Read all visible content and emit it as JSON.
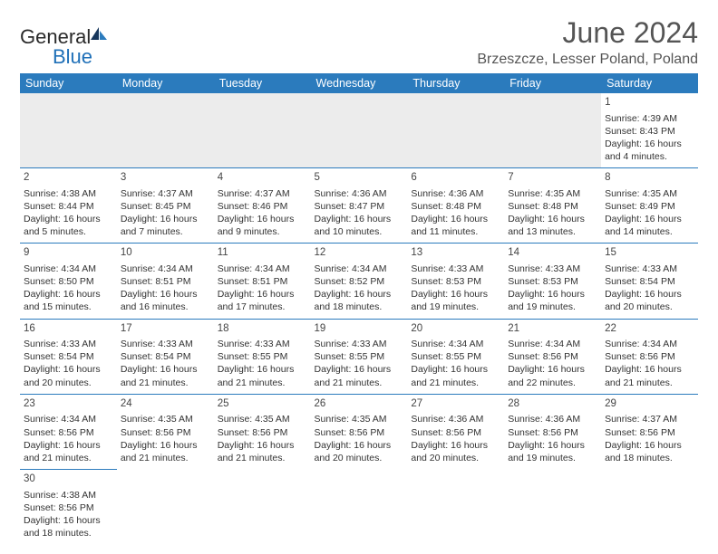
{
  "brand": {
    "general": "General",
    "blue": "Blue"
  },
  "title": "June 2024",
  "location": "Brzeszcze, Lesser Poland, Poland",
  "colors": {
    "header_bg": "#2b7bbd",
    "header_text": "#ffffff",
    "cell_border": "#2b7bbd",
    "blank_bg": "#ececec",
    "text": "#333333"
  },
  "day_headers": [
    "Sunday",
    "Monday",
    "Tuesday",
    "Wednesday",
    "Thursday",
    "Friday",
    "Saturday"
  ],
  "weeks": [
    [
      null,
      null,
      null,
      null,
      null,
      null,
      {
        "n": "1",
        "sunrise": "Sunrise: 4:39 AM",
        "sunset": "Sunset: 8:43 PM",
        "daylight": "Daylight: 16 hours and 4 minutes."
      }
    ],
    [
      {
        "n": "2",
        "sunrise": "Sunrise: 4:38 AM",
        "sunset": "Sunset: 8:44 PM",
        "daylight": "Daylight: 16 hours and 5 minutes."
      },
      {
        "n": "3",
        "sunrise": "Sunrise: 4:37 AM",
        "sunset": "Sunset: 8:45 PM",
        "daylight": "Daylight: 16 hours and 7 minutes."
      },
      {
        "n": "4",
        "sunrise": "Sunrise: 4:37 AM",
        "sunset": "Sunset: 8:46 PM",
        "daylight": "Daylight: 16 hours and 9 minutes."
      },
      {
        "n": "5",
        "sunrise": "Sunrise: 4:36 AM",
        "sunset": "Sunset: 8:47 PM",
        "daylight": "Daylight: 16 hours and 10 minutes."
      },
      {
        "n": "6",
        "sunrise": "Sunrise: 4:36 AM",
        "sunset": "Sunset: 8:48 PM",
        "daylight": "Daylight: 16 hours and 11 minutes."
      },
      {
        "n": "7",
        "sunrise": "Sunrise: 4:35 AM",
        "sunset": "Sunset: 8:48 PM",
        "daylight": "Daylight: 16 hours and 13 minutes."
      },
      {
        "n": "8",
        "sunrise": "Sunrise: 4:35 AM",
        "sunset": "Sunset: 8:49 PM",
        "daylight": "Daylight: 16 hours and 14 minutes."
      }
    ],
    [
      {
        "n": "9",
        "sunrise": "Sunrise: 4:34 AM",
        "sunset": "Sunset: 8:50 PM",
        "daylight": "Daylight: 16 hours and 15 minutes."
      },
      {
        "n": "10",
        "sunrise": "Sunrise: 4:34 AM",
        "sunset": "Sunset: 8:51 PM",
        "daylight": "Daylight: 16 hours and 16 minutes."
      },
      {
        "n": "11",
        "sunrise": "Sunrise: 4:34 AM",
        "sunset": "Sunset: 8:51 PM",
        "daylight": "Daylight: 16 hours and 17 minutes."
      },
      {
        "n": "12",
        "sunrise": "Sunrise: 4:34 AM",
        "sunset": "Sunset: 8:52 PM",
        "daylight": "Daylight: 16 hours and 18 minutes."
      },
      {
        "n": "13",
        "sunrise": "Sunrise: 4:33 AM",
        "sunset": "Sunset: 8:53 PM",
        "daylight": "Daylight: 16 hours and 19 minutes."
      },
      {
        "n": "14",
        "sunrise": "Sunrise: 4:33 AM",
        "sunset": "Sunset: 8:53 PM",
        "daylight": "Daylight: 16 hours and 19 minutes."
      },
      {
        "n": "15",
        "sunrise": "Sunrise: 4:33 AM",
        "sunset": "Sunset: 8:54 PM",
        "daylight": "Daylight: 16 hours and 20 minutes."
      }
    ],
    [
      {
        "n": "16",
        "sunrise": "Sunrise: 4:33 AM",
        "sunset": "Sunset: 8:54 PM",
        "daylight": "Daylight: 16 hours and 20 minutes."
      },
      {
        "n": "17",
        "sunrise": "Sunrise: 4:33 AM",
        "sunset": "Sunset: 8:54 PM",
        "daylight": "Daylight: 16 hours and 21 minutes."
      },
      {
        "n": "18",
        "sunrise": "Sunrise: 4:33 AM",
        "sunset": "Sunset: 8:55 PM",
        "daylight": "Daylight: 16 hours and 21 minutes."
      },
      {
        "n": "19",
        "sunrise": "Sunrise: 4:33 AM",
        "sunset": "Sunset: 8:55 PM",
        "daylight": "Daylight: 16 hours and 21 minutes."
      },
      {
        "n": "20",
        "sunrise": "Sunrise: 4:34 AM",
        "sunset": "Sunset: 8:55 PM",
        "daylight": "Daylight: 16 hours and 21 minutes."
      },
      {
        "n": "21",
        "sunrise": "Sunrise: 4:34 AM",
        "sunset": "Sunset: 8:56 PM",
        "daylight": "Daylight: 16 hours and 22 minutes."
      },
      {
        "n": "22",
        "sunrise": "Sunrise: 4:34 AM",
        "sunset": "Sunset: 8:56 PM",
        "daylight": "Daylight: 16 hours and 21 minutes."
      }
    ],
    [
      {
        "n": "23",
        "sunrise": "Sunrise: 4:34 AM",
        "sunset": "Sunset: 8:56 PM",
        "daylight": "Daylight: 16 hours and 21 minutes."
      },
      {
        "n": "24",
        "sunrise": "Sunrise: 4:35 AM",
        "sunset": "Sunset: 8:56 PM",
        "daylight": "Daylight: 16 hours and 21 minutes."
      },
      {
        "n": "25",
        "sunrise": "Sunrise: 4:35 AM",
        "sunset": "Sunset: 8:56 PM",
        "daylight": "Daylight: 16 hours and 21 minutes."
      },
      {
        "n": "26",
        "sunrise": "Sunrise: 4:35 AM",
        "sunset": "Sunset: 8:56 PM",
        "daylight": "Daylight: 16 hours and 20 minutes."
      },
      {
        "n": "27",
        "sunrise": "Sunrise: 4:36 AM",
        "sunset": "Sunset: 8:56 PM",
        "daylight": "Daylight: 16 hours and 20 minutes."
      },
      {
        "n": "28",
        "sunrise": "Sunrise: 4:36 AM",
        "sunset": "Sunset: 8:56 PM",
        "daylight": "Daylight: 16 hours and 19 minutes."
      },
      {
        "n": "29",
        "sunrise": "Sunrise: 4:37 AM",
        "sunset": "Sunset: 8:56 PM",
        "daylight": "Daylight: 16 hours and 18 minutes."
      }
    ],
    [
      {
        "n": "30",
        "sunrise": "Sunrise: 4:38 AM",
        "sunset": "Sunset: 8:56 PM",
        "daylight": "Daylight: 16 hours and 18 minutes."
      },
      null,
      null,
      null,
      null,
      null,
      null
    ]
  ]
}
